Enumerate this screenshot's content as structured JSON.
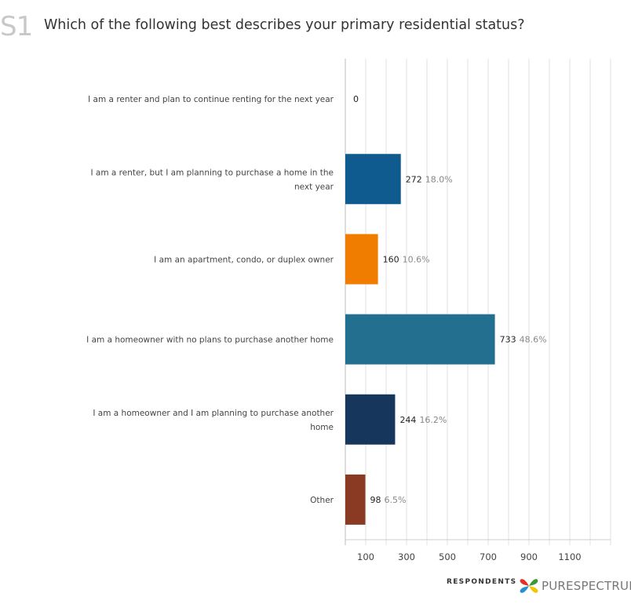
{
  "question": {
    "id": "S1",
    "text": "Which of the following best describes your primary residential status?"
  },
  "chart_data": {
    "type": "bar",
    "orientation": "horizontal",
    "categories": [
      "I am a renter and plan to continue renting for the next year",
      "I am a renter, but I am planning to purchase a home in the next year",
      "I am an apartment, condo, or duplex owner",
      "I am a homeowner with no plans to purchase another home",
      "I am a homeowner and I am planning to purchase another home",
      "Other"
    ],
    "category_lines": [
      [
        "I am a renter and plan to continue renting for the next year"
      ],
      [
        "I am a renter, but I am planning to purchase a home in the",
        "next year"
      ],
      [
        "I am an apartment, condo, or duplex owner"
      ],
      [
        "I am a homeowner with no plans to purchase another home"
      ],
      [
        "I am a homeowner and I am planning to purchase another",
        "home"
      ],
      [
        "Other"
      ]
    ],
    "values": [
      0,
      272,
      160,
      733,
      244,
      98
    ],
    "percent_labels": [
      "",
      "18.0%",
      "10.6%",
      "48.6%",
      "16.2%",
      "6.5%"
    ],
    "colors": [
      "#0f5a8f",
      "#0f5a8f",
      "#f07c00",
      "#236f8f",
      "#17365c",
      "#8a3a22"
    ],
    "xlim": [
      0,
      1300
    ],
    "xticks": [
      100,
      300,
      500,
      700,
      900,
      1100
    ],
    "grid": true,
    "xlabel": "RESPONDENTS"
  },
  "brand": {
    "name": "PURESPECTRUM"
  }
}
